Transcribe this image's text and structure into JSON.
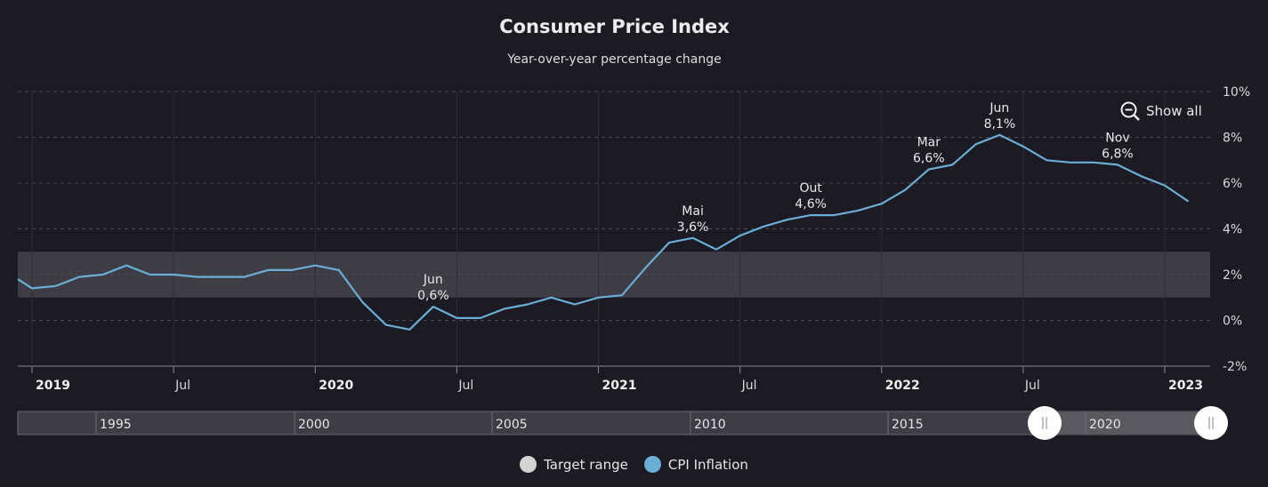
{
  "chart_data": {
    "type": "line",
    "title": "Consumer Price Index",
    "subtitle": "Year-over-year percentage change",
    "y_tick_labels": [
      "10%",
      "8%",
      "6%",
      "4%",
      "2%",
      "0%",
      "-2%"
    ],
    "x_tick_labels": [
      {
        "label": "2019",
        "year": true
      },
      {
        "label": "Jul",
        "year": false
      },
      {
        "label": "2020",
        "year": true
      },
      {
        "label": "Jul",
        "year": false
      },
      {
        "label": "2021",
        "year": true
      },
      {
        "label": "Jul",
        "year": false
      },
      {
        "label": "2022",
        "year": true
      },
      {
        "label": "Jul",
        "year": false
      },
      {
        "label": "2023",
        "year": true
      }
    ],
    "ylim": [
      -2,
      10
    ],
    "grid": true,
    "target_range": {
      "name": "Target range",
      "from": 1,
      "to": 3,
      "color": "#d3d3d3"
    },
    "series": [
      {
        "name": "CPI Inflation",
        "color": "#6aaed6",
        "x": [
          "2018-12",
          "2019-01",
          "2019-02",
          "2019-03",
          "2019-04",
          "2019-05",
          "2019-06",
          "2019-07",
          "2019-08",
          "2019-09",
          "2019-10",
          "2019-11",
          "2019-12",
          "2020-01",
          "2020-02",
          "2020-03",
          "2020-04",
          "2020-05",
          "2020-06",
          "2020-07",
          "2020-08",
          "2020-09",
          "2020-10",
          "2020-11",
          "2020-12",
          "2021-01",
          "2021-02",
          "2021-03",
          "2021-04",
          "2021-05",
          "2021-06",
          "2021-07",
          "2021-08",
          "2021-09",
          "2021-10",
          "2021-11",
          "2021-12",
          "2022-01",
          "2022-02",
          "2022-03",
          "2022-04",
          "2022-05",
          "2022-06",
          "2022-07",
          "2022-08",
          "2022-09",
          "2022-10",
          "2022-11",
          "2022-12",
          "2023-01",
          "2023-02"
        ],
        "values": [
          1.8,
          1.4,
          1.5,
          1.9,
          2.0,
          2.4,
          2.0,
          2.0,
          1.9,
          1.9,
          1.9,
          2.2,
          2.2,
          2.4,
          2.2,
          0.8,
          -0.2,
          -0.4,
          0.6,
          0.1,
          0.1,
          0.5,
          0.7,
          1.0,
          0.7,
          1.0,
          1.1,
          2.3,
          3.4,
          3.6,
          3.1,
          3.7,
          4.1,
          4.4,
          4.6,
          4.6,
          4.8,
          5.1,
          5.7,
          6.6,
          6.8,
          7.7,
          8.1,
          7.6,
          7.0,
          6.9,
          6.9,
          6.8,
          6.3,
          5.9,
          5.2
        ]
      }
    ],
    "annotations": [
      {
        "month": "Jun",
        "value": "0,6%",
        "x": "2020-06",
        "y": 0.6
      },
      {
        "month": "Mai",
        "value": "3,6%",
        "x": "2021-05",
        "y": 3.6
      },
      {
        "month": "Out",
        "value": "4,6%",
        "x": "2021-10",
        "y": 4.6
      },
      {
        "month": "Mar",
        "value": "6,6%",
        "x": "2022-03",
        "y": 6.6
      },
      {
        "month": "Jun",
        "value": "8,1%",
        "x": "2022-06",
        "y": 8.1
      },
      {
        "month": "Nov",
        "value": "6,8%",
        "x": "2022-11",
        "y": 6.8
      }
    ],
    "legend": {
      "placement": "bottom-center",
      "items": [
        {
          "label": "Target range",
          "color": "#d3d3d3"
        },
        {
          "label": "CPI Inflation",
          "color": "#6aaed6"
        }
      ]
    }
  },
  "controls": {
    "show_all_label": "Show all",
    "zoom_out_icon": "zoom-out-icon"
  },
  "navigator": {
    "year_labels": [
      "1995",
      "2000",
      "2005",
      "2010",
      "2015",
      "2020"
    ],
    "selected_from": "2018-12",
    "selected_to": "2023-02",
    "handle_icon": "drag-handle-icon"
  }
}
